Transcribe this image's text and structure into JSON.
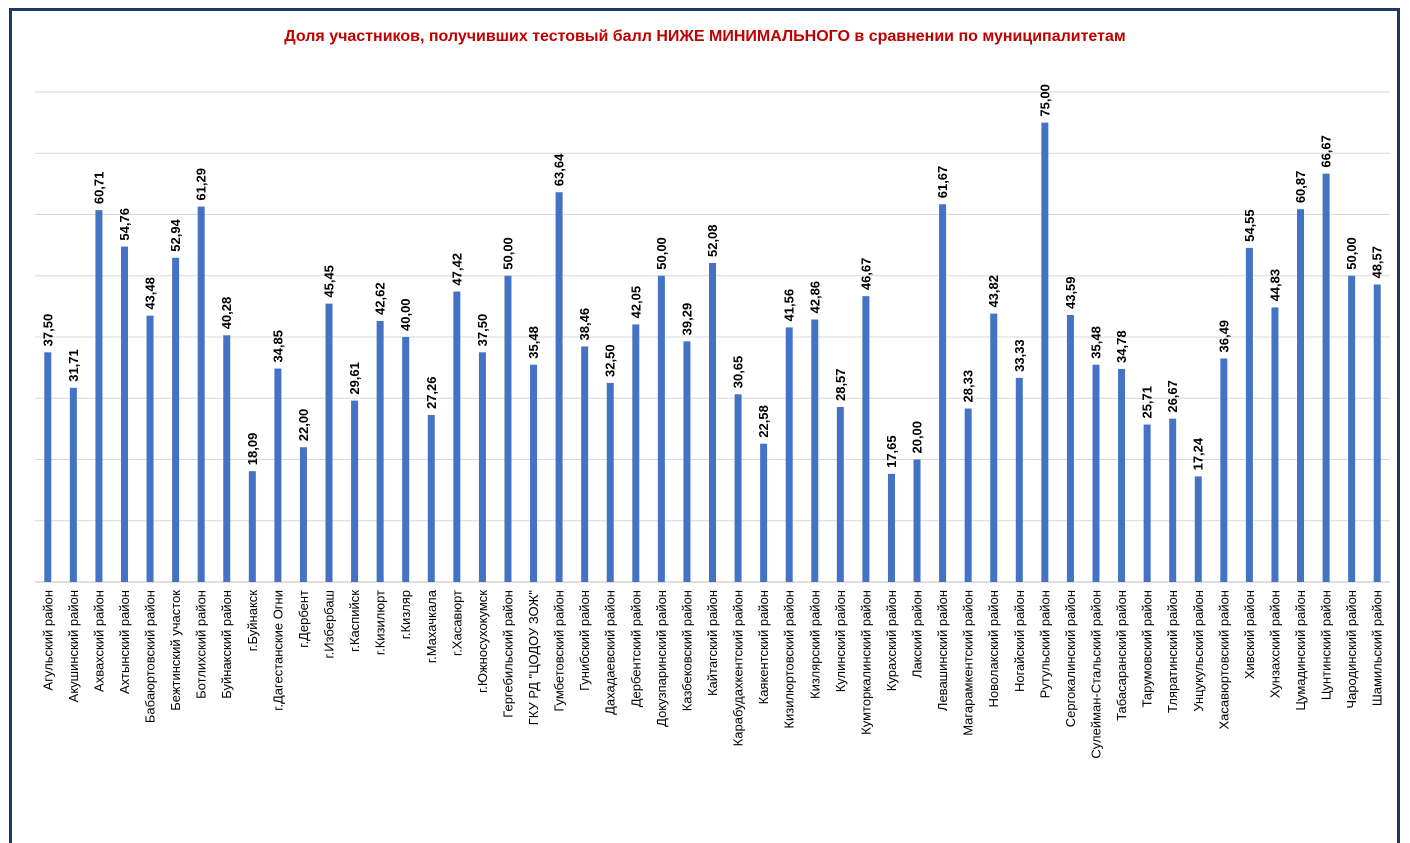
{
  "chart_data": {
    "type": "bar",
    "title": "Доля участников, получивших тестовый балл НИЖЕ МИНИМАЛЬНОГО в сравнении по муниципалитетам",
    "categories": [
      "Агульский район",
      "Акушинский район",
      "Ахвахский район",
      "Ахтынский район",
      "Бабаюртовский район",
      "Бежтинский участок",
      "Ботлихский район",
      "Буйнакский район",
      "г.Буйнакск",
      "г.Дагестанские Огни",
      "г.Дербент",
      "г.Избербаш",
      "г.Каспийск",
      "г.Кизилюрт",
      "г.Кизляр",
      "г.Махачкала",
      "г.Хасавюрт",
      "г.Южносухокумск",
      "Гергебильский район",
      "ГКУ РД \"ЦОДОУ ЗОЖ\"",
      "Гумбетовский район",
      "Гунибский район",
      "Дахадаевский район",
      "Дербентский район",
      "Докузпаринский район",
      "Казбековский район",
      "Кайтагский район",
      "Карабудахкентский район",
      "Каякентский район",
      "Кизилюртовский район",
      "Кизлярский район",
      "Кулинский район",
      "Кумторкалинский район",
      "Курахский район",
      "Лакский район",
      "Левашинский район",
      "Магарамкентский район",
      "Новолакский район",
      "Ногайский район",
      "Рутульский район",
      "Сергокалинский район",
      "Сулейман-Стальский район",
      "Табасаранский район",
      "Тарумовский район",
      "Тляратинский район",
      "Унцукульский район",
      "Хасавюртовский район",
      "Хивский район",
      "Хунзахский район",
      "Цумадинский район",
      "Цунтинский район",
      "Чародинский район",
      "Шамильский район"
    ],
    "values": [
      37.5,
      31.71,
      60.71,
      54.76,
      43.48,
      52.94,
      61.29,
      40.28,
      18.09,
      34.85,
      22.0,
      45.45,
      29.61,
      42.62,
      40.0,
      27.26,
      47.42,
      37.5,
      50.0,
      35.48,
      63.64,
      38.46,
      32.5,
      42.05,
      50.0,
      39.29,
      52.08,
      30.65,
      22.58,
      41.56,
      42.86,
      28.57,
      46.67,
      17.65,
      20.0,
      61.67,
      28.33,
      43.82,
      33.33,
      75.0,
      43.59,
      35.48,
      34.78,
      25.71,
      26.67,
      17.24,
      36.49,
      54.55,
      44.83,
      60.87,
      66.67,
      50.0,
      48.57
    ],
    "data_labels": [
      "37,50",
      "31,71",
      "60,71",
      "54,76",
      "43,48",
      "52,94",
      "61,29",
      "40,28",
      "18,09",
      "34,85",
      "22,00",
      "45,45",
      "29,61",
      "42,62",
      "40,00",
      "27,26",
      "47,42",
      "37,50",
      "50,00",
      "35,48",
      "63,64",
      "38,46",
      "32,50",
      "42,05",
      "50,00",
      "39,29",
      "52,08",
      "30,65",
      "22,58",
      "41,56",
      "42,86",
      "28,57",
      "46,67",
      "17,65",
      "20,00",
      "61,67",
      "28,33",
      "43,82",
      "33,33",
      "75,00",
      "43,59",
      "35,48",
      "34,78",
      "25,71",
      "26,67",
      "17,24",
      "36,49",
      "54,55",
      "44,83",
      "60,87",
      "66,67",
      "50,00",
      "48,57"
    ],
    "xlabel": "",
    "ylabel": "",
    "ylim": [
      0,
      80
    ],
    "grid": true,
    "legend": "none",
    "bar_color": "#4472c4",
    "title_color": "#c00000",
    "frame_color": "#1f3864"
  }
}
